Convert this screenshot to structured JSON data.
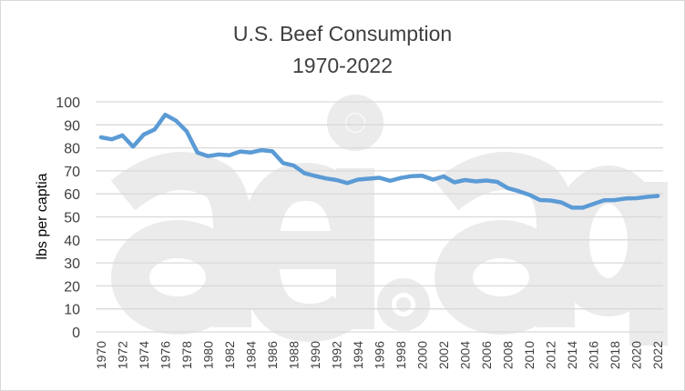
{
  "chart_data": {
    "type": "line",
    "title": "U.S. Beef Consumption",
    "subtitle": "1970-2022",
    "xlabel": "",
    "ylabel": "lbs per captia",
    "ylim": [
      0,
      100
    ],
    "yticks": [
      0,
      10,
      20,
      30,
      40,
      50,
      60,
      70,
      80,
      90,
      100
    ],
    "grid": true,
    "legend": "none",
    "watermark": "aei.ag",
    "series_color": "#5B9BD5",
    "x": [
      1970,
      1971,
      1972,
      1973,
      1974,
      1975,
      1976,
      1977,
      1978,
      1979,
      1980,
      1981,
      1982,
      1983,
      1984,
      1985,
      1986,
      1987,
      1988,
      1989,
      1990,
      1991,
      1992,
      1993,
      1994,
      1995,
      1996,
      1997,
      1998,
      1999,
      2000,
      2001,
      2002,
      2003,
      2004,
      2005,
      2006,
      2007,
      2008,
      2009,
      2010,
      2011,
      2012,
      2013,
      2014,
      2015,
      2016,
      2017,
      2018,
      2019,
      2020,
      2021,
      2022
    ],
    "values": [
      84.6,
      83.7,
      85.4,
      80.5,
      85.8,
      88.0,
      94.4,
      91.8,
      87.2,
      78.0,
      76.4,
      77.1,
      76.8,
      78.4,
      78.0,
      79.0,
      78.5,
      73.4,
      72.3,
      69.0,
      67.8,
      66.7,
      66.0,
      64.7,
      66.2,
      66.6,
      67.0,
      65.7,
      66.9,
      67.7,
      67.9,
      66.2,
      67.6,
      65.0,
      66.0,
      65.4,
      65.8,
      65.2,
      62.5,
      61.2,
      59.6,
      57.3,
      57.1,
      56.3,
      54.0,
      54.0,
      55.6,
      57.2,
      57.3,
      58.0,
      58.1,
      58.7,
      59.1
    ],
    "xtick_labels": [
      "1970",
      "1972",
      "1974",
      "1976",
      "1978",
      "1980",
      "1982",
      "1984",
      "1986",
      "1988",
      "1990",
      "1992",
      "1994",
      "1996",
      "1998",
      "2000",
      "2002",
      "2004",
      "2006",
      "2008",
      "2010",
      "2012",
      "2014",
      "2016",
      "2018",
      "2020",
      "2022"
    ]
  }
}
